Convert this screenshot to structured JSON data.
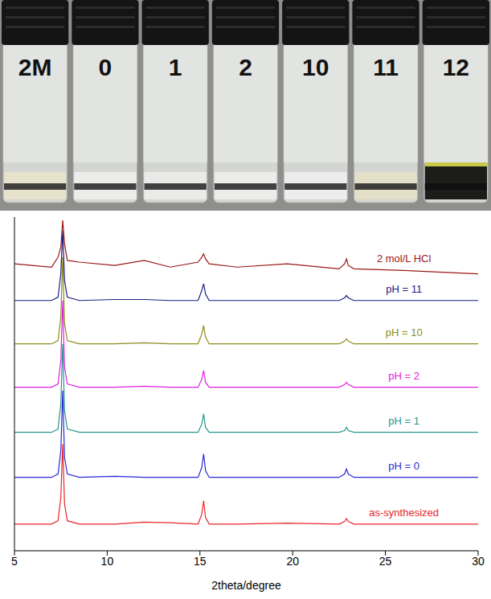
{
  "photo": {
    "vial_labels": [
      "2M",
      "0",
      "1",
      "2",
      "10",
      "11",
      "12"
    ],
    "colors": [
      "#e6e2cc",
      "#ecedeb",
      "#eaebe9",
      "#ecedeb",
      "#ecedec",
      "#e3dfc8",
      "#1c1c1a"
    ]
  },
  "chart_data": {
    "type": "line",
    "x_label": "2theta/degree",
    "x": [
      5,
      7.0,
      7.35,
      7.5,
      7.6,
      7.7,
      7.85,
      8.5,
      10.4,
      12,
      13.4,
      14.9,
      15.1,
      15.2,
      15.3,
      15.5,
      17,
      19.7,
      22.5,
      22.8,
      22.9,
      23.0,
      23.3,
      26,
      30
    ],
    "xlim": [
      5,
      30
    ],
    "xticks": [
      5,
      10,
      15,
      20,
      25,
      30
    ],
    "ylim": [
      0,
      100
    ],
    "yticks": [],
    "tick_labels": "x",
    "series": [
      {
        "name": "as-synthesized",
        "color": "#e8262a",
        "values": [
          8,
          8,
          9,
          16,
          32,
          14,
          9,
          8,
          8,
          8.6,
          8.4,
          8,
          11,
          15,
          10,
          8,
          8,
          8.3,
          8,
          8.8,
          9.6,
          8.8,
          8,
          8,
          8
        ]
      },
      {
        "name": "pH = 0",
        "color": "#2a2ad4",
        "values": [
          22,
          22,
          23,
          30,
          48,
          28,
          23,
          22,
          22.3,
          22,
          22,
          22,
          25,
          29,
          24,
          22,
          22,
          22,
          22,
          23,
          24.5,
          23,
          22,
          22,
          22
        ]
      },
      {
        "name": "pH = 1",
        "color": "#26968f",
        "values": [
          35.5,
          35.5,
          36.5,
          44,
          62,
          42,
          36.5,
          35.5,
          35.5,
          35.5,
          35.5,
          35.5,
          38,
          41,
          37,
          35.5,
          35.5,
          35.5,
          35.5,
          36,
          37,
          36,
          35.5,
          35.5,
          35.5
        ]
      },
      {
        "name": "pH = 2",
        "color": "#e020e0",
        "values": [
          49,
          49,
          50,
          57,
          75,
          55,
          50,
          49,
          49,
          49.3,
          49,
          49,
          51.5,
          54,
          50.5,
          49,
          49,
          49,
          49,
          49.8,
          50.5,
          49.8,
          49,
          49,
          49
        ]
      },
      {
        "name": "pH = 10",
        "color": "#8c8c1c",
        "values": [
          62,
          62,
          63,
          70,
          88,
          68,
          63,
          62,
          62,
          62.3,
          62,
          62,
          65,
          67.5,
          64,
          62,
          62,
          62,
          62,
          62.8,
          63.5,
          62.8,
          62,
          62,
          62
        ]
      },
      {
        "name": "pH = 11",
        "color": "#1c2080",
        "values": [
          75,
          75,
          76,
          83,
          96,
          81,
          76,
          75,
          75.3,
          75.3,
          75,
          75,
          78,
          80,
          77,
          75,
          75,
          75,
          75,
          75.8,
          76.5,
          75.8,
          75,
          75,
          75
        ]
      },
      {
        "name": "2 mol/L HCl",
        "color": "#9a1818",
        "values": [
          86,
          85,
          88,
          91,
          99,
          92,
          87,
          86.5,
          85.5,
          87,
          85,
          86.5,
          88,
          89,
          87.5,
          86,
          85,
          86,
          84.5,
          86,
          87.5,
          85.5,
          84.5,
          84,
          83
        ]
      }
    ]
  }
}
